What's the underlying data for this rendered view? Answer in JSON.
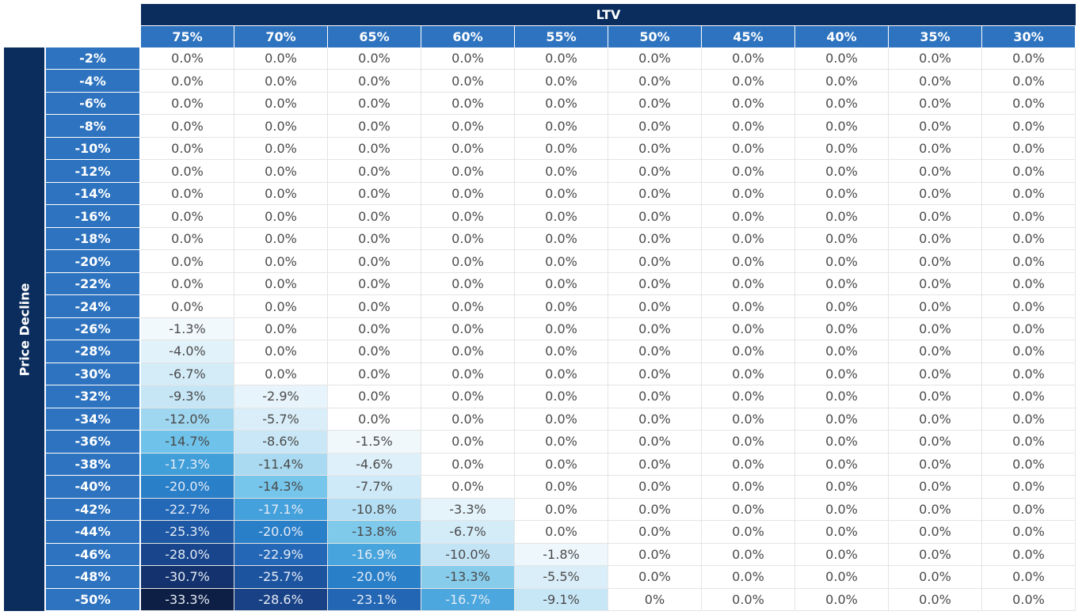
{
  "table": {
    "header": "LTV",
    "row_axis": "Price Decline",
    "columns": [
      "75%",
      "70%",
      "65%",
      "60%",
      "55%",
      "50%",
      "45%",
      "40%",
      "35%",
      "30%"
    ],
    "rows": [
      {
        "label": "-2%",
        "cells": [
          "0.0%",
          "0.0%",
          "0.0%",
          "0.0%",
          "0.0%",
          "0.0%",
          "0.0%",
          "0.0%",
          "0.0%",
          "0.0%"
        ]
      },
      {
        "label": "-4%",
        "cells": [
          "0.0%",
          "0.0%",
          "0.0%",
          "0.0%",
          "0.0%",
          "0.0%",
          "0.0%",
          "0.0%",
          "0.0%",
          "0.0%"
        ]
      },
      {
        "label": "-6%",
        "cells": [
          "0.0%",
          "0.0%",
          "0.0%",
          "0.0%",
          "0.0%",
          "0.0%",
          "0.0%",
          "0.0%",
          "0.0%",
          "0.0%"
        ]
      },
      {
        "label": "-8%",
        "cells": [
          "0.0%",
          "0.0%",
          "0.0%",
          "0.0%",
          "0.0%",
          "0.0%",
          "0.0%",
          "0.0%",
          "0.0%",
          "0.0%"
        ]
      },
      {
        "label": "-10%",
        "cells": [
          "0.0%",
          "0.0%",
          "0.0%",
          "0.0%",
          "0.0%",
          "0.0%",
          "0.0%",
          "0.0%",
          "0.0%",
          "0.0%"
        ]
      },
      {
        "label": "-12%",
        "cells": [
          "0.0%",
          "0.0%",
          "0.0%",
          "0.0%",
          "0.0%",
          "0.0%",
          "0.0%",
          "0.0%",
          "0.0%",
          "0.0%"
        ]
      },
      {
        "label": "-14%",
        "cells": [
          "0.0%",
          "0.0%",
          "0.0%",
          "0.0%",
          "0.0%",
          "0.0%",
          "0.0%",
          "0.0%",
          "0.0%",
          "0.0%"
        ]
      },
      {
        "label": "-16%",
        "cells": [
          "0.0%",
          "0.0%",
          "0.0%",
          "0.0%",
          "0.0%",
          "0.0%",
          "0.0%",
          "0.0%",
          "0.0%",
          "0.0%"
        ]
      },
      {
        "label": "-18%",
        "cells": [
          "0.0%",
          "0.0%",
          "0.0%",
          "0.0%",
          "0.0%",
          "0.0%",
          "0.0%",
          "0.0%",
          "0.0%",
          "0.0%"
        ]
      },
      {
        "label": "-20%",
        "cells": [
          "0.0%",
          "0.0%",
          "0.0%",
          "0.0%",
          "0.0%",
          "0.0%",
          "0.0%",
          "0.0%",
          "0.0%",
          "0.0%"
        ]
      },
      {
        "label": "-22%",
        "cells": [
          "0.0%",
          "0.0%",
          "0.0%",
          "0.0%",
          "0.0%",
          "0.0%",
          "0.0%",
          "0.0%",
          "0.0%",
          "0.0%"
        ]
      },
      {
        "label": "-24%",
        "cells": [
          "0.0%",
          "0.0%",
          "0.0%",
          "0.0%",
          "0.0%",
          "0.0%",
          "0.0%",
          "0.0%",
          "0.0%",
          "0.0%"
        ]
      },
      {
        "label": "-26%",
        "cells": [
          "-1.3%",
          "0.0%",
          "0.0%",
          "0.0%",
          "0.0%",
          "0.0%",
          "0.0%",
          "0.0%",
          "0.0%",
          "0.0%"
        ]
      },
      {
        "label": "-28%",
        "cells": [
          "-4.0%",
          "0.0%",
          "0.0%",
          "0.0%",
          "0.0%",
          "0.0%",
          "0.0%",
          "0.0%",
          "0.0%",
          "0.0%"
        ]
      },
      {
        "label": "-30%",
        "cells": [
          "-6.7%",
          "0.0%",
          "0.0%",
          "0.0%",
          "0.0%",
          "0.0%",
          "0.0%",
          "0.0%",
          "0.0%",
          "0.0%"
        ]
      },
      {
        "label": "-32%",
        "cells": [
          "-9.3%",
          "-2.9%",
          "0.0%",
          "0.0%",
          "0.0%",
          "0.0%",
          "0.0%",
          "0.0%",
          "0.0%",
          "0.0%"
        ]
      },
      {
        "label": "-34%",
        "cells": [
          "-12.0%",
          "-5.7%",
          "0.0%",
          "0.0%",
          "0.0%",
          "0.0%",
          "0.0%",
          "0.0%",
          "0.0%",
          "0.0%"
        ]
      },
      {
        "label": "-36%",
        "cells": [
          "-14.7%",
          "-8.6%",
          "-1.5%",
          "0.0%",
          "0.0%",
          "0.0%",
          "0.0%",
          "0.0%",
          "0.0%",
          "0.0%"
        ]
      },
      {
        "label": "-38%",
        "cells": [
          "-17.3%",
          "-11.4%",
          "-4.6%",
          "0.0%",
          "0.0%",
          "0.0%",
          "0.0%",
          "0.0%",
          "0.0%",
          "0.0%"
        ]
      },
      {
        "label": "-40%",
        "cells": [
          "-20.0%",
          "-14.3%",
          "-7.7%",
          "0.0%",
          "0.0%",
          "0.0%",
          "0.0%",
          "0.0%",
          "0.0%",
          "0.0%"
        ]
      },
      {
        "label": "-42%",
        "cells": [
          "-22.7%",
          "-17.1%",
          "-10.8%",
          "-3.3%",
          "0.0%",
          "0.0%",
          "0.0%",
          "0.0%",
          "0.0%",
          "0.0%"
        ]
      },
      {
        "label": "-44%",
        "cells": [
          "-25.3%",
          "-20.0%",
          "-13.8%",
          "-6.7%",
          "0.0%",
          "0.0%",
          "0.0%",
          "0.0%",
          "0.0%",
          "0.0%"
        ]
      },
      {
        "label": "-46%",
        "cells": [
          "-28.0%",
          "-22.9%",
          "-16.9%",
          "-10.0%",
          "-1.8%",
          "0.0%",
          "0.0%",
          "0.0%",
          "0.0%",
          "0.0%"
        ]
      },
      {
        "label": "-48%",
        "cells": [
          "-30.7%",
          "-25.7%",
          "-20.0%",
          "-13.3%",
          "-5.5%",
          "0.0%",
          "0.0%",
          "0.0%",
          "0.0%",
          "0.0%"
        ]
      },
      {
        "label": "-50%",
        "cells": [
          "-33.3%",
          "-28.6%",
          "-23.1%",
          "-16.7%",
          "-9.1%",
          "0%",
          "0.0%",
          "0.0%",
          "0.0%",
          "0.0%"
        ]
      }
    ]
  }
}
